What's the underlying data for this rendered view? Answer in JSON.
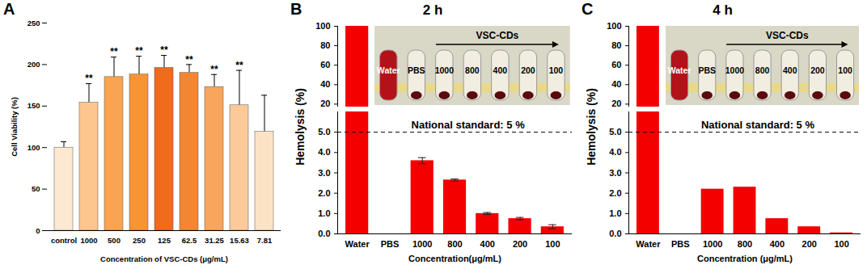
{
  "chart_data": [
    {
      "type": "bar",
      "panel_label": "A",
      "categories": [
        "control",
        "1000",
        "500",
        "250",
        "125",
        "62.5",
        "31.25",
        "15.63",
        "7.81"
      ],
      "values": [
        100,
        154,
        185,
        188,
        196,
        190,
        173,
        151,
        119
      ],
      "errors": [
        7,
        23,
        24,
        22,
        15,
        10,
        15,
        42,
        44
      ],
      "significance": [
        null,
        "**",
        "**",
        "**",
        "**",
        "**",
        "**",
        "**",
        null
      ],
      "colors": [
        "#fde9d2",
        "#fdc68f",
        "#f9a452",
        "#f79434",
        "#f06b1c",
        "#f38633",
        "#f8a55e",
        "#fcc999",
        "#fde3c5"
      ],
      "ylim": [
        0,
        250
      ],
      "yticks": [
        0,
        50,
        100,
        150,
        200,
        250
      ],
      "y_label": "Cell Viability (%)",
      "x_label": "Concentration of VSC-CDs (μg/mL)"
    },
    {
      "type": "bar",
      "panel_label": "B",
      "title": "2 h",
      "categories": [
        "Water",
        "PBS",
        "1000",
        "800",
        "400",
        "200",
        "100"
      ],
      "values": [
        100,
        0,
        3.6,
        2.65,
        1.0,
        0.75,
        0.35
      ],
      "errors": [
        null,
        null,
        0.15,
        0.05,
        0.05,
        0.06,
        0.1
      ],
      "color": "#f40000",
      "ylim": [
        0,
        100
      ],
      "y_break": [
        6,
        17
      ],
      "yticks": [
        0,
        1,
        2,
        3,
        4,
        5,
        20,
        40,
        60,
        80,
        100
      ],
      "y_label": "Hemolysis (%)",
      "x_label": "Concentration(μg/mL)",
      "reference_line": {
        "value": 5,
        "label": "National standard: 5 %"
      },
      "inset": {
        "title": "VSC-CDs",
        "labels": [
          "Water",
          "PBS",
          "1000",
          "800",
          "400",
          "200",
          "100"
        ]
      }
    },
    {
      "type": "bar",
      "panel_label": "C",
      "title": "4 h",
      "categories": [
        "Water",
        "PBS",
        "1000",
        "800",
        "400",
        "200",
        "100"
      ],
      "values": [
        100,
        0,
        2.2,
        2.3,
        0.75,
        0.35,
        0.05
      ],
      "color": "#f40000",
      "ylim": [
        0,
        100
      ],
      "y_break": [
        6,
        17
      ],
      "yticks": [
        0,
        1,
        2,
        3,
        4,
        5,
        20,
        40,
        60,
        80,
        100
      ],
      "y_label": "Hemolysis (%)",
      "x_label": "Concentration (μg/mL)",
      "reference_line": {
        "value": 5,
        "label": "National standard: 5 %"
      },
      "inset": {
        "title": "VSC-CDs",
        "labels": [
          "Water",
          "PBS",
          "1000",
          "800",
          "400",
          "200",
          "100"
        ]
      }
    }
  ]
}
